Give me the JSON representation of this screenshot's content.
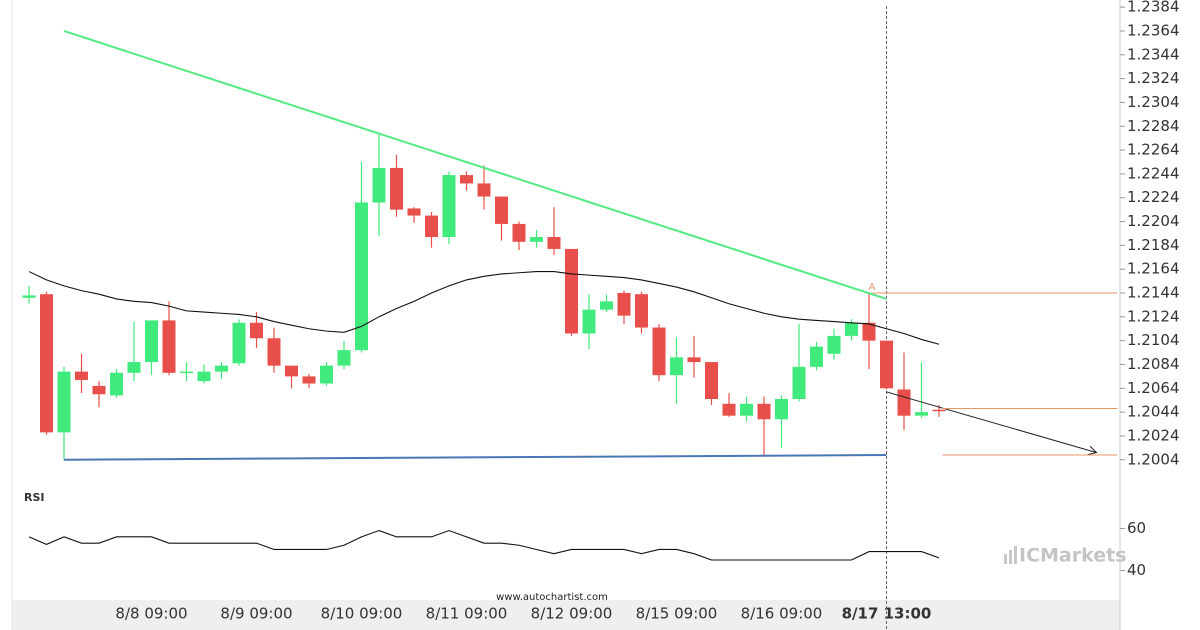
{
  "chart_data": {
    "type": "candlestick",
    "categories": [
      null,
      null,
      null,
      null,
      null,
      null,
      null,
      "8/8 09:00",
      null,
      null,
      null,
      null,
      null,
      "8/9 09:00",
      null,
      null,
      null,
      null,
      null,
      "8/10 09:00",
      null,
      null,
      null,
      null,
      null,
      "8/11 09:00",
      null,
      null,
      null,
      null,
      null,
      "8/12 09:00",
      null,
      null,
      null,
      null,
      null,
      "8/15 09:00",
      null,
      null,
      null,
      null,
      null,
      "8/16 09:00",
      null,
      null,
      null,
      null,
      null,
      "8/17 13:00",
      null,
      null,
      null
    ],
    "open": [
      1.214,
      1.2143,
      1.2027,
      1.2078,
      1.2066,
      1.2058,
      1.2077,
      1.2086,
      1.2121,
      1.2077,
      1.207,
      1.2078,
      1.2085,
      1.2119,
      1.2106,
      1.2083,
      1.2074,
      1.2068,
      1.2083,
      1.2096,
      1.222,
      1.2249,
      1.2215,
      1.2209,
      1.2191,
      1.2243,
      1.2236,
      1.2225,
      1.2202,
      1.2187,
      1.2191,
      1.2181,
      1.211,
      1.213,
      1.2144,
      1.2143,
      1.2115,
      1.2075,
      1.209,
      1.2086,
      1.2051,
      1.2041,
      1.2051,
      1.2038,
      1.2055,
      1.2082,
      1.2093,
      1.2108,
      1.2119,
      1.2104,
      1.2063,
      1.2041,
      1.2046
    ],
    "high": [
      1.215,
      1.2145,
      1.2082,
      1.2093,
      1.207,
      1.208,
      1.212,
      1.2121,
      1.2137,
      1.2086,
      1.2084,
      1.2086,
      1.2122,
      1.2128,
      1.2115,
      1.2083,
      1.2076,
      1.2086,
      1.2104,
      1.2254,
      1.2277,
      1.226,
      1.2216,
      1.2212,
      1.2246,
      1.2246,
      1.2251,
      1.2225,
      1.2204,
      1.2197,
      1.2216,
      1.2181,
      1.2143,
      1.2143,
      1.2146,
      1.2145,
      1.2118,
      1.2107,
      1.2108,
      1.2086,
      1.206,
      1.2057,
      1.2057,
      1.2058,
      1.2118,
      1.2103,
      1.2114,
      1.2122,
      1.2144,
      1.2104,
      1.2094,
      1.2086,
      1.205
    ],
    "low": [
      1.2135,
      1.2025,
      1.2004,
      1.206,
      1.2048,
      1.2056,
      1.207,
      1.2075,
      1.2075,
      1.207,
      1.2068,
      1.2072,
      1.2083,
      1.2098,
      1.2077,
      1.2064,
      1.2064,
      1.2066,
      1.208,
      1.2094,
      1.2192,
      1.2208,
      1.2203,
      1.2182,
      1.2185,
      1.223,
      1.2214,
      1.2188,
      1.218,
      1.2182,
      1.2176,
      1.2108,
      1.2097,
      1.2128,
      1.2118,
      1.211,
      1.207,
      1.2051,
      1.2073,
      1.205,
      1.204,
      1.2036,
      1.2008,
      1.2014,
      1.2053,
      1.2079,
      1.2088,
      1.2104,
      1.208,
      1.2063,
      1.2029,
      1.2039,
      1.204
    ],
    "close": [
      1.2142,
      1.2027,
      1.2078,
      1.2071,
      1.2059,
      1.2077,
      1.2086,
      1.2121,
      1.2077,
      1.2078,
      1.2078,
      1.2083,
      1.2119,
      1.2106,
      1.2083,
      1.2074,
      1.2068,
      1.2083,
      1.2096,
      1.222,
      1.2249,
      1.2214,
      1.2209,
      1.2191,
      1.2243,
      1.2236,
      1.2225,
      1.2202,
      1.2187,
      1.2191,
      1.2181,
      1.211,
      1.213,
      1.2137,
      1.2125,
      1.2115,
      1.2075,
      1.209,
      1.2086,
      1.2055,
      1.2041,
      1.2051,
      1.2038,
      1.2055,
      1.2082,
      1.2099,
      1.2108,
      1.2119,
      1.2104,
      1.2064,
      1.2041,
      1.2044,
      1.2045
    ],
    "ma": [
      1.2162,
      1.2155,
      1.215,
      1.2146,
      1.2143,
      1.2139,
      1.2137,
      1.2136,
      1.2133,
      1.2129,
      1.2128,
      1.2127,
      1.2126,
      1.2124,
      1.212,
      1.2117,
      1.2114,
      1.2112,
      1.2111,
      1.2116,
      1.2124,
      1.2131,
      1.2137,
      1.2144,
      1.215,
      1.2155,
      1.2158,
      1.216,
      1.2161,
      1.2162,
      1.2162,
      1.216,
      1.2159,
      1.2158,
      1.2157,
      1.2155,
      1.2152,
      1.2149,
      1.2145,
      1.214,
      1.2135,
      1.2131,
      1.2127,
      1.2124,
      1.2122,
      1.2121,
      1.212,
      1.2119,
      1.2118,
      1.2114,
      1.211,
      1.2105,
      1.2101
    ],
    "up_color": "#40ea7c",
    "down_color": "#e84f4a",
    "ylim": [
      1.1987,
      1.239
    ],
    "yticks": [
      1.2004,
      1.2024,
      1.2044,
      1.2064,
      1.2084,
      1.2104,
      1.2124,
      1.2144,
      1.2164,
      1.2184,
      1.2204,
      1.2224,
      1.2244,
      1.2264,
      1.2284,
      1.2304,
      1.2324,
      1.2344,
      1.2364,
      1.2384
    ],
    "trendlines": [
      {
        "color": "#52ea82",
        "points": [
          [
            2,
            1.2364
          ],
          [
            49,
            1.2139
          ]
        ]
      },
      {
        "color": "#4a78b4",
        "points": [
          [
            2,
            1.2004
          ],
          [
            49,
            1.2008
          ]
        ]
      },
      {
        "color": "#222222",
        "points": [
          [
            49,
            1.2061
          ],
          [
            61,
            1.201
          ]
        ],
        "arrow": true
      }
    ],
    "levels": [
      {
        "value": 1.2144,
        "from": 48.2,
        "to": 62.2,
        "color": "#e8956a",
        "label": "A"
      },
      {
        "value": 1.2047,
        "from": 52.2,
        "to": 62.2,
        "color": "#e8956a"
      },
      {
        "value": 1.2008,
        "from": 52.2,
        "to": 62.2,
        "color": "#e8956a"
      }
    ],
    "rsi": {
      "title": "RSI",
      "ylim": [
        26,
        83
      ],
      "yticks": [
        60,
        40
      ],
      "values": [
        56,
        52.4,
        56,
        53,
        53,
        56,
        56,
        56,
        53,
        53,
        53,
        53,
        53,
        53,
        50,
        50,
        50,
        50,
        52,
        56,
        59,
        56,
        56,
        56,
        59,
        56,
        53,
        53,
        52,
        50,
        48,
        50,
        50,
        50,
        50,
        48,
        50,
        50,
        48,
        45,
        45,
        45,
        45,
        45,
        45,
        45,
        45,
        45,
        49,
        49,
        49,
        49,
        46
      ]
    },
    "source": "www.autochartist.com",
    "watermark": "ICMarkets"
  }
}
